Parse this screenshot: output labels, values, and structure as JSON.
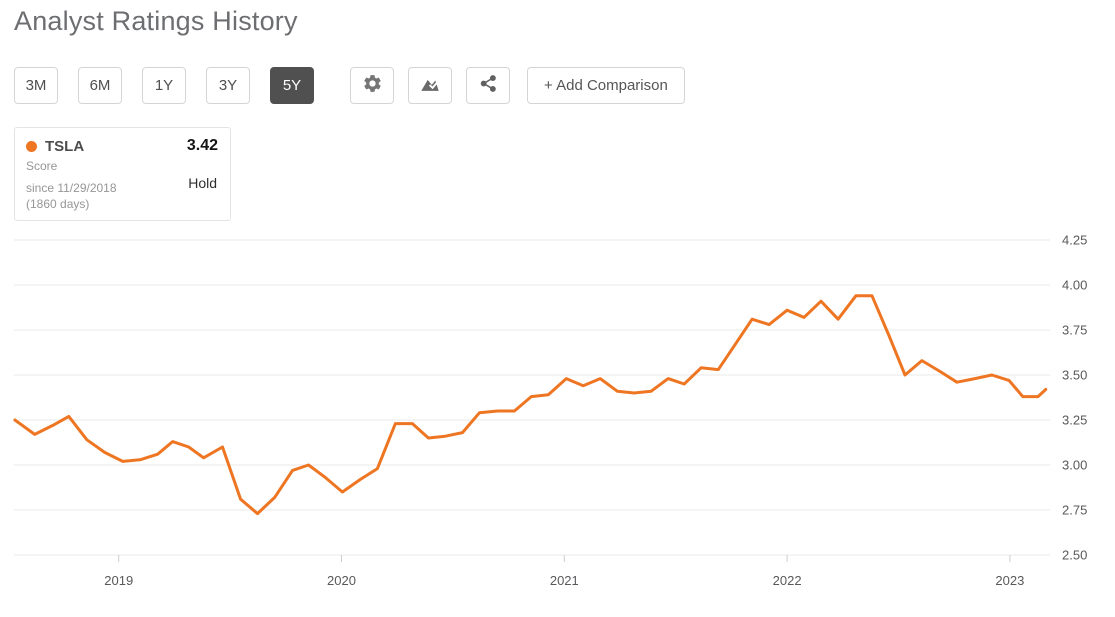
{
  "page": {
    "title": "Analyst Ratings History"
  },
  "toolbar": {
    "range_buttons": [
      {
        "label": "3M",
        "active": false
      },
      {
        "label": "6M",
        "active": false
      },
      {
        "label": "1Y",
        "active": false
      },
      {
        "label": "3Y",
        "active": false
      },
      {
        "label": "5Y",
        "active": true
      }
    ],
    "icon_buttons": [
      {
        "name": "settings"
      },
      {
        "name": "chart-style"
      },
      {
        "name": "share"
      }
    ],
    "add_comparison_label": "+ Add Comparison"
  },
  "legend_card": {
    "ticker": "TSLA",
    "score_value": "3.42",
    "score_label": "Score",
    "since_text": "since 11/29/2018",
    "duration_text": "(1860 days)",
    "rating_text": "Hold",
    "series_color": "#ee7623"
  },
  "colors": {
    "accent_orange": "#ee7623",
    "active_button_bg": "#505050",
    "grid_line": "#e8e8e8",
    "axis_text": "#58595b",
    "title_text": "#6d6e71"
  },
  "chart_data": {
    "type": "line",
    "title": "Analyst Ratings History",
    "xlabel": "",
    "ylabel": "Score",
    "grid": "horizontal",
    "y_axis_side": "right",
    "legend_position": "top-left",
    "x_ticks": [
      2019,
      2020,
      2021,
      2022,
      2023
    ],
    "y_ticks": [
      2.5,
      2.75,
      3.0,
      3.25,
      3.5,
      3.75,
      4.0,
      4.25
    ],
    "xlim": [
      2018.53,
      2023.18
    ],
    "ylim": [
      2.5,
      4.25
    ],
    "current": {
      "value": 3.42,
      "rating": "Hold",
      "since": "11/29/2018",
      "days": 1860
    },
    "series": [
      {
        "name": "TSLA Score",
        "color": "#ee7623",
        "x": [
          2018.534,
          2018.623,
          2018.704,
          2018.776,
          2018.857,
          2018.937,
          2019.018,
          2019.099,
          2019.175,
          2019.242,
          2019.314,
          2019.381,
          2019.466,
          2019.547,
          2019.623,
          2019.7,
          2019.78,
          2019.852,
          2019.928,
          2020.004,
          2020.085,
          2020.161,
          2020.242,
          2020.318,
          2020.39,
          2020.466,
          2020.543,
          2020.619,
          2020.7,
          2020.776,
          2020.852,
          2020.928,
          2021.009,
          2021.085,
          2021.161,
          2021.238,
          2021.314,
          2021.39,
          2021.466,
          2021.538,
          2021.614,
          2021.691,
          2021.767,
          2021.843,
          2021.919,
          2022.0,
          2022.076,
          2022.152,
          2022.229,
          2022.309,
          2022.381,
          2022.457,
          2022.529,
          2022.605,
          2022.686,
          2022.762,
          2022.843,
          2022.919,
          2022.996,
          2023.058,
          2023.126,
          2023.161
        ],
        "values": [
          3.25,
          3.17,
          3.22,
          3.27,
          3.14,
          3.07,
          3.02,
          3.03,
          3.06,
          3.13,
          3.1,
          3.04,
          3.1,
          2.81,
          2.73,
          2.82,
          2.97,
          3.0,
          2.93,
          2.85,
          2.92,
          2.98,
          3.23,
          3.23,
          3.15,
          3.16,
          3.18,
          3.29,
          3.3,
          3.3,
          3.38,
          3.39,
          3.48,
          3.44,
          3.48,
          3.41,
          3.4,
          3.41,
          3.48,
          3.45,
          3.54,
          3.53,
          3.67,
          3.81,
          3.78,
          3.86,
          3.82,
          3.91,
          3.81,
          3.94,
          3.94,
          3.72,
          3.5,
          3.58,
          3.52,
          3.46,
          3.48,
          3.5,
          3.47,
          3.38,
          3.38,
          3.42
        ]
      }
    ]
  }
}
